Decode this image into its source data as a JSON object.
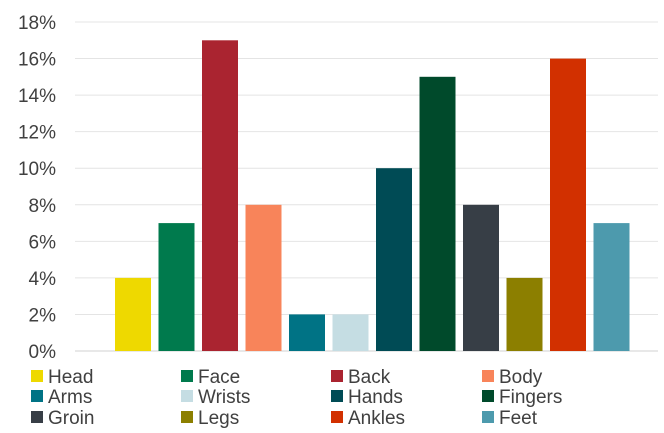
{
  "chart_data": {
    "type": "bar",
    "categories": [
      "Head",
      "Face",
      "Back",
      "Body",
      "Arms",
      "Wrists",
      "Hands",
      "Fingers",
      "Groin",
      "Legs",
      "Ankles",
      "Feet"
    ],
    "values": [
      4,
      7,
      17,
      8,
      2,
      2,
      10,
      15,
      8,
      4,
      16,
      7
    ],
    "colors": [
      "#EED900",
      "#007A4D",
      "#AA2430",
      "#F8845A",
      "#007385",
      "#C5DDE3",
      "#004B55",
      "#004A2B",
      "#373E46",
      "#8C7F00",
      "#D23000",
      "#4D9AAD"
    ],
    "ylim": [
      0,
      18
    ],
    "yticks": [
      0,
      2,
      4,
      6,
      8,
      10,
      12,
      14,
      16,
      18
    ],
    "ytick_labels": [
      "0%",
      "2%",
      "4%",
      "6%",
      "8%",
      "10%",
      "12%",
      "14%",
      "16%",
      "18%"
    ],
    "grid": true,
    "legend_position": "bottom",
    "title": "",
    "xlabel": "",
    "ylabel": ""
  }
}
